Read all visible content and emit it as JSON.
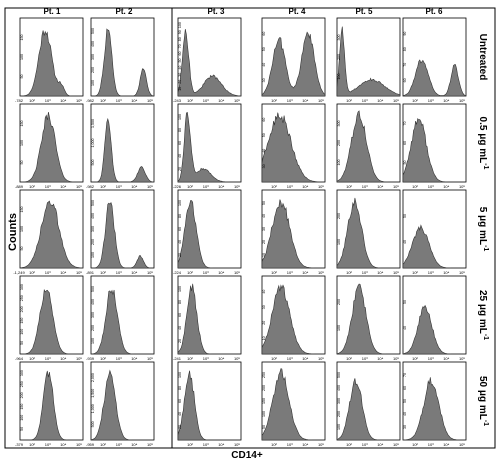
{
  "figure": {
    "y_axis_label": "Counts",
    "x_axis_label": "CD14+",
    "columns": [
      "Pt. 1",
      "Pt. 2",
      "Pt. 3",
      "Pt. 4",
      "Pt. 5",
      "Pt. 6"
    ],
    "rows": [
      {
        "base": "Untreated",
        "sup": ""
      },
      {
        "base": "0.5 μg mL",
        "sup": "-1"
      },
      {
        "base": "5 μg mL",
        "sup": "-1"
      },
      {
        "base": "25 μg mL",
        "sup": "-1"
      },
      {
        "base": "50 μg mL",
        "sup": "-1"
      }
    ],
    "fill_color": "#7a7a7a",
    "stroke_color": "#333333"
  },
  "chart_data": {
    "type": "histogram-grid",
    "xlabel": "CD14+",
    "ylabel": "Counts",
    "x_scale": "log",
    "x_ticks": [
      "10²",
      "10³",
      "10⁴",
      "10⁵"
    ],
    "x_min_labels": [
      [
        "-782",
        "-982",
        "-243",
        "",
        "",
        ""
      ],
      [
        "-889",
        "-982",
        "-226",
        "",
        "",
        ""
      ],
      [
        "-1,249",
        "-891",
        "-224",
        "",
        "",
        ""
      ],
      [
        "-964",
        "-939",
        "-241",
        "",
        "",
        ""
      ],
      [
        "-379",
        "-959",
        "",
        "",
        "",
        ""
      ]
    ],
    "y_tick_labels": [
      [
        [
          "50",
          "100",
          "150"
        ],
        [
          "100",
          "200",
          "300",
          "400",
          "500"
        ],
        [
          "10",
          "20",
          "30",
          "40",
          "50",
          "60",
          "70",
          "80",
          "90",
          "100"
        ],
        [
          "30",
          "40",
          "50",
          "60"
        ],
        [
          "100",
          "200",
          "300"
        ],
        [
          "60",
          "70",
          "80",
          "90"
        ]
      ],
      [
        [
          "50",
          "100",
          "150"
        ],
        [
          "500",
          "1,000",
          "1,500"
        ],
        [
          "20",
          "40",
          "60",
          "80",
          "100"
        ],
        [
          "30",
          "40",
          "50",
          "60"
        ],
        [
          "100",
          "200",
          "300"
        ],
        [
          "50",
          "60",
          "70"
        ]
      ],
      [
        [
          "50",
          "100",
          "150"
        ],
        [
          "100",
          "200",
          "300",
          "400",
          "500"
        ],
        [
          "20",
          "40",
          "60",
          "80",
          "100"
        ],
        [
          "10",
          "20",
          "30",
          "40",
          "50"
        ],
        [
          "100",
          "200"
        ],
        [
          "40",
          "50"
        ]
      ],
      [
        [
          "50",
          "100",
          "150",
          "200",
          "250",
          "300"
        ],
        [
          "100",
          "200",
          "300",
          "400",
          "500"
        ],
        [
          "20",
          "40",
          "60",
          "80",
          "100"
        ],
        [
          "10",
          "20",
          "30",
          "40"
        ],
        [
          "100",
          "200"
        ],
        [
          "40",
          "50"
        ]
      ],
      [
        [
          "50",
          "100",
          "150",
          "200",
          "250",
          "300"
        ],
        [
          "500",
          "1,000",
          "1,500",
          "2,000"
        ],
        [
          "20",
          "40",
          "60",
          "80",
          "100"
        ],
        [
          "50",
          "100",
          "150",
          "200",
          "250"
        ],
        [
          "100",
          "200",
          "300",
          "400",
          "500"
        ],
        [
          "30",
          "40",
          "50",
          "60",
          "70"
        ]
      ]
    ],
    "series": [
      [
        [
          [
            0.4,
            1.0,
            0.1
          ],
          [
            0.65,
            0.15,
            0.05
          ]
        ],
        [
          [
            0.27,
            1.0,
            0.06
          ],
          [
            0.83,
            0.4,
            0.05
          ]
        ],
        [
          [
            0.12,
            1.0,
            0.05
          ],
          [
            0.55,
            0.3,
            0.14
          ]
        ],
        [
          [
            0.27,
            0.85,
            0.1
          ],
          [
            0.73,
            0.95,
            0.1
          ]
        ],
        [
          [
            0.08,
            1.0,
            0.04
          ],
          [
            0.55,
            0.25,
            0.2
          ]
        ],
        [
          [
            0.3,
            0.55,
            0.1
          ],
          [
            0.82,
            0.45,
            0.06
          ]
        ]
      ],
      [
        [
          [
            0.45,
            1.0,
            0.11
          ]
        ],
        [
          [
            0.27,
            1.0,
            0.05
          ],
          [
            0.8,
            0.22,
            0.06
          ]
        ],
        [
          [
            0.15,
            1.0,
            0.05
          ],
          [
            0.4,
            0.2,
            0.12
          ]
        ],
        [
          [
            0.28,
            1.0,
            0.18
          ]
        ],
        [
          [
            0.35,
            1.0,
            0.12
          ]
        ],
        [
          [
            0.25,
            0.95,
            0.12
          ]
        ]
      ],
      [
        [
          [
            0.48,
            1.0,
            0.14
          ]
        ],
        [
          [
            0.3,
            1.0,
            0.07
          ],
          [
            0.78,
            0.18,
            0.05
          ]
        ],
        [
          [
            0.2,
            1.0,
            0.09
          ]
        ],
        [
          [
            0.3,
            1.0,
            0.14
          ]
        ],
        [
          [
            0.28,
            1.0,
            0.11
          ]
        ],
        [
          [
            0.28,
            0.6,
            0.13
          ]
        ]
      ],
      [
        [
          [
            0.42,
            1.0,
            0.1
          ]
        ],
        [
          [
            0.33,
            1.0,
            0.09
          ]
        ],
        [
          [
            0.22,
            1.0,
            0.08
          ]
        ],
        [
          [
            0.3,
            1.0,
            0.14
          ]
        ],
        [
          [
            0.35,
            1.0,
            0.11
          ]
        ],
        [
          [
            0.35,
            0.7,
            0.11
          ]
        ]
      ],
      [
        [
          [
            0.45,
            1.0,
            0.08
          ]
        ],
        [
          [
            0.3,
            1.0,
            0.09
          ]
        ],
        [
          [
            0.18,
            1.0,
            0.08
          ]
        ],
        [
          [
            0.3,
            1.0,
            0.13
          ]
        ],
        [
          [
            0.3,
            0.9,
            0.1
          ]
        ],
        [
          [
            0.45,
            0.9,
            0.12
          ]
        ]
      ]
    ]
  }
}
